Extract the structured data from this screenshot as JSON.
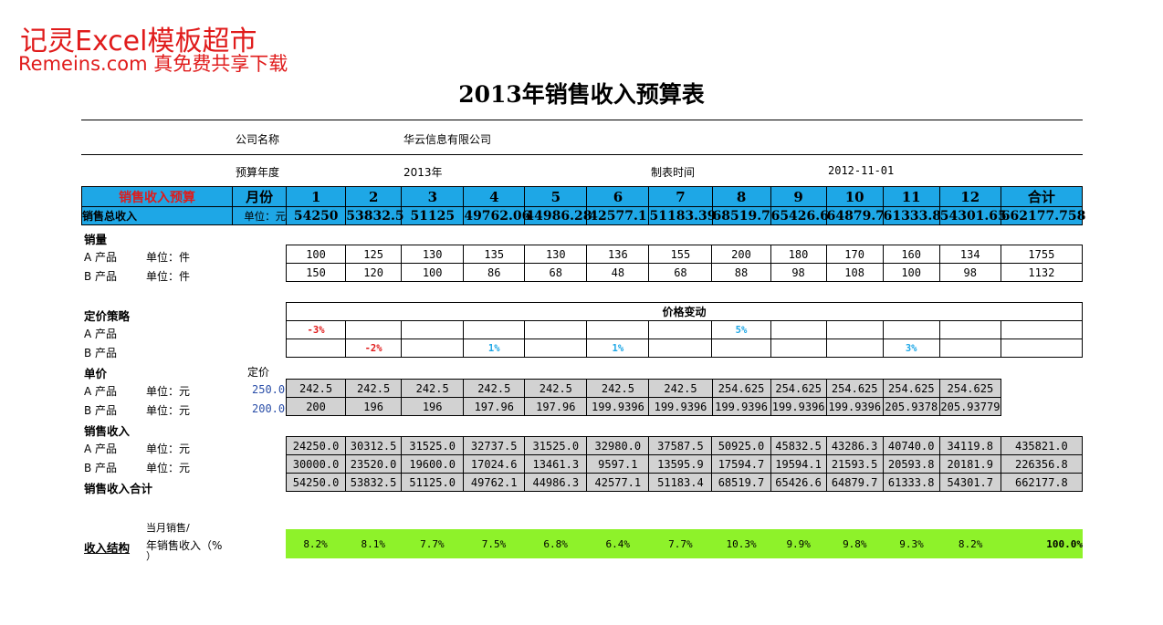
{
  "watermark": {
    "line1": "记灵Excel模板超市",
    "line2": "Remeins.com 真免费共享下载"
  },
  "title": "2013年销售收入预算表",
  "company_label": "公司名称",
  "company_name": "华云信息有限公司",
  "year_label": "预算年度",
  "year_value": "2013年",
  "date_label": "制表时间",
  "date_value": "2012-11-01",
  "header": {
    "section": "销售收入预算",
    "month": "月份",
    "months": [
      "1",
      "2",
      "3",
      "4",
      "5",
      "6",
      "7",
      "8",
      "9",
      "10",
      "11",
      "12"
    ],
    "total": "合计"
  },
  "total_revenue": {
    "label": "销售总收入",
    "unit": "单位：元",
    "values": [
      "54250",
      "53832.5",
      "51125",
      "49762.06",
      "44986.28",
      "42577.1",
      "51183.39",
      "68519.7",
      "65426.6",
      "64879.7",
      "61333.8",
      "54301.65",
      "662177.758"
    ]
  },
  "sales_volume": {
    "title": "销量",
    "rows": [
      {
        "product": "A 产品",
        "unit": "单位：件",
        "values": [
          "100",
          "125",
          "130",
          "135",
          "130",
          "136",
          "155",
          "200",
          "180",
          "170",
          "160",
          "134",
          "1755"
        ]
      },
      {
        "product": "B 产品",
        "unit": "单位：件",
        "values": [
          "150",
          "120",
          "100",
          "86",
          "68",
          "48",
          "68",
          "88",
          "98",
          "108",
          "100",
          "98",
          "1132"
        ]
      }
    ]
  },
  "pricing": {
    "title": "定价策略",
    "change_header": "价格变动",
    "rows": [
      {
        "product": "A 产品",
        "values": [
          "-3%",
          "",
          "",
          "",
          "",
          "",
          "",
          "5%",
          "",
          "",
          "",
          "",
          ""
        ]
      },
      {
        "product": "B 产品",
        "values": [
          "",
          "-2%",
          "",
          "1%",
          "",
          "1%",
          "",
          "",
          "",
          "",
          "3%",
          "",
          ""
        ]
      }
    ]
  },
  "unit_price": {
    "title": "单价",
    "base_label": "定价",
    "rows": [
      {
        "product": "A 产品",
        "unit": "单位：元",
        "base": "250.00",
        "values": [
          "242.5",
          "242.5",
          "242.5",
          "242.5",
          "242.5",
          "242.5",
          "242.5",
          "254.625",
          "254.625",
          "254.625",
          "254.625",
          "254.625"
        ]
      },
      {
        "product": "B 产品",
        "unit": "单位：元",
        "base": "200.00",
        "values": [
          "200",
          "196",
          "196",
          "197.96",
          "197.96",
          "199.9396",
          "199.9396",
          "199.9396",
          "199.9396",
          "199.9396",
          "205.9378",
          "205.93779"
        ]
      }
    ]
  },
  "sales_revenue": {
    "title": "销售收入",
    "rows": [
      {
        "product": "A 产品",
        "unit": "单位：元",
        "values": [
          "24250.0",
          "30312.5",
          "31525.0",
          "32737.5",
          "31525.0",
          "32980.0",
          "37587.5",
          "50925.0",
          "45832.5",
          "43286.3",
          "40740.0",
          "34119.8",
          "435821.0"
        ]
      },
      {
        "product": "B 产品",
        "unit": "单位：元",
        "values": [
          "30000.0",
          "23520.0",
          "19600.0",
          "17024.6",
          "13461.3",
          "9597.1",
          "13595.9",
          "17594.7",
          "19594.1",
          "21593.5",
          "20593.8",
          "20181.9",
          "226356.8"
        ]
      }
    ],
    "total_label": "销售收入合计",
    "total_values": [
      "54250.0",
      "53832.5",
      "51125.0",
      "49762.1",
      "44986.3",
      "42577.1",
      "51183.4",
      "68519.7",
      "65426.6",
      "64879.7",
      "61333.8",
      "54301.7",
      "662177.8"
    ]
  },
  "structure": {
    "title": "收入结构",
    "desc_top": "当月销售/",
    "desc_mid": "年销售收入（%",
    "desc_bot": "）",
    "values": [
      "8.2%",
      "8.1%",
      "7.7%",
      "7.5%",
      "6.8%",
      "6.4%",
      "7.7%",
      "10.3%",
      "9.9%",
      "9.8%",
      "9.3%",
      "8.2%",
      "100.0%"
    ]
  },
  "colors": {
    "header_blue": "#1ea7e6",
    "watermark_red": "#e01b1b",
    "gray_cell": "#d2d2d2",
    "structure_green": "#8ef22a"
  }
}
